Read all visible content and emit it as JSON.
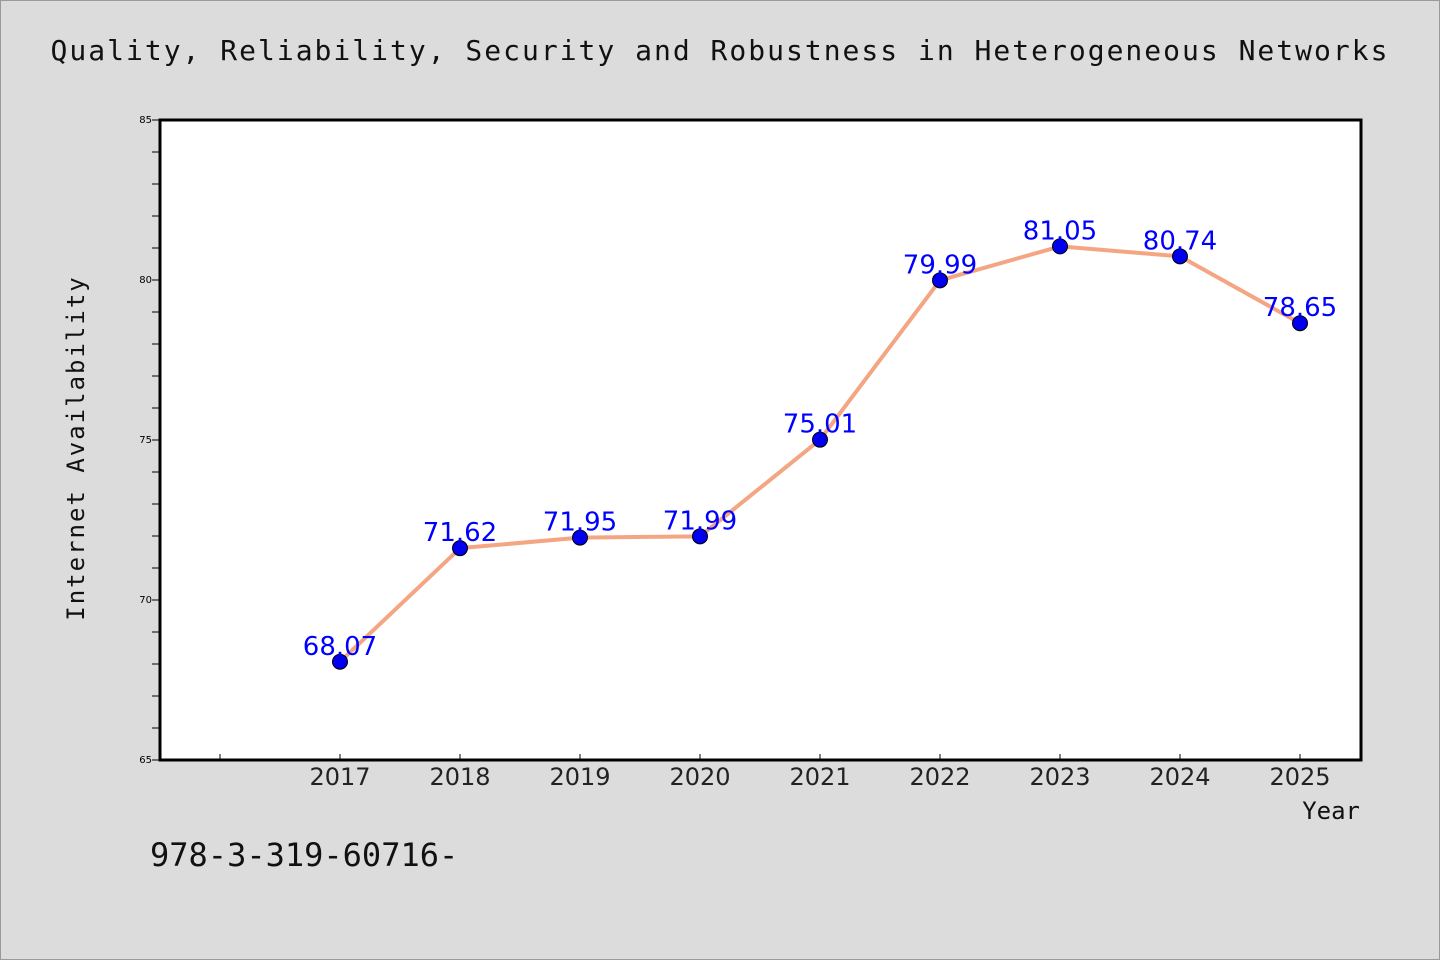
{
  "chart_data": {
    "type": "line",
    "title": "Quality, Reliability, Security and Robustness in Heterogeneous Networks",
    "xlabel": "Year",
    "ylabel": "Internet Availability",
    "categories": [
      "2017",
      "2018",
      "2019",
      "2020",
      "2021",
      "2022",
      "2023",
      "2024",
      "2025"
    ],
    "values": [
      68.07,
      71.62,
      71.95,
      71.99,
      75.01,
      79.99,
      81.05,
      80.74,
      78.65
    ],
    "ylim": [
      65,
      85
    ],
    "yticks": [
      65,
      70,
      75,
      80,
      85
    ],
    "line_color": "#f4a582",
    "marker_color": "#0000ee",
    "label_color": "#0000ff",
    "grid": false,
    "legend": "none"
  },
  "footer_note": "978-3-319-60716-"
}
